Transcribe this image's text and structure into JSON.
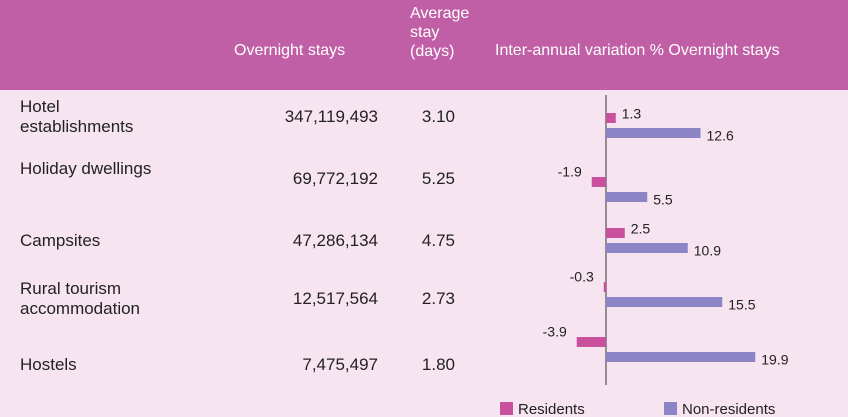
{
  "table": {
    "headers": [
      "Overnight stays",
      [
        "Average",
        "stay",
        "(days)"
      ]
    ],
    "rows": [
      [
        "Hotel establishments",
        "347,119,493",
        "3.10"
      ],
      [
        "Holiday dwellings",
        "69,772,192",
        "5.25"
      ],
      [
        "Campsites",
        "47,286,134",
        "4.75"
      ],
      [
        "Rural tourism accommodation",
        "12,517,564",
        "2.73"
      ],
      [
        "Hostels",
        "7,475,497",
        "1.80"
      ]
    ]
  },
  "chart_data": {
    "type": "bar",
    "orientation": "horizontal",
    "title": "Inter-annual variation % Overnight stays",
    "xlim": [
      -4,
      32
    ],
    "series": [
      {
        "name": "Residents",
        "color": "#c9509c",
        "values": [
          1.3,
          -1.9,
          2.5,
          -0.3,
          -3.9
        ]
      },
      {
        "name": "Non-residents",
        "color": "#8c84c4",
        "values": [
          12.6,
          5.5,
          10.9,
          15.5,
          19.9
        ]
      }
    ]
  }
}
